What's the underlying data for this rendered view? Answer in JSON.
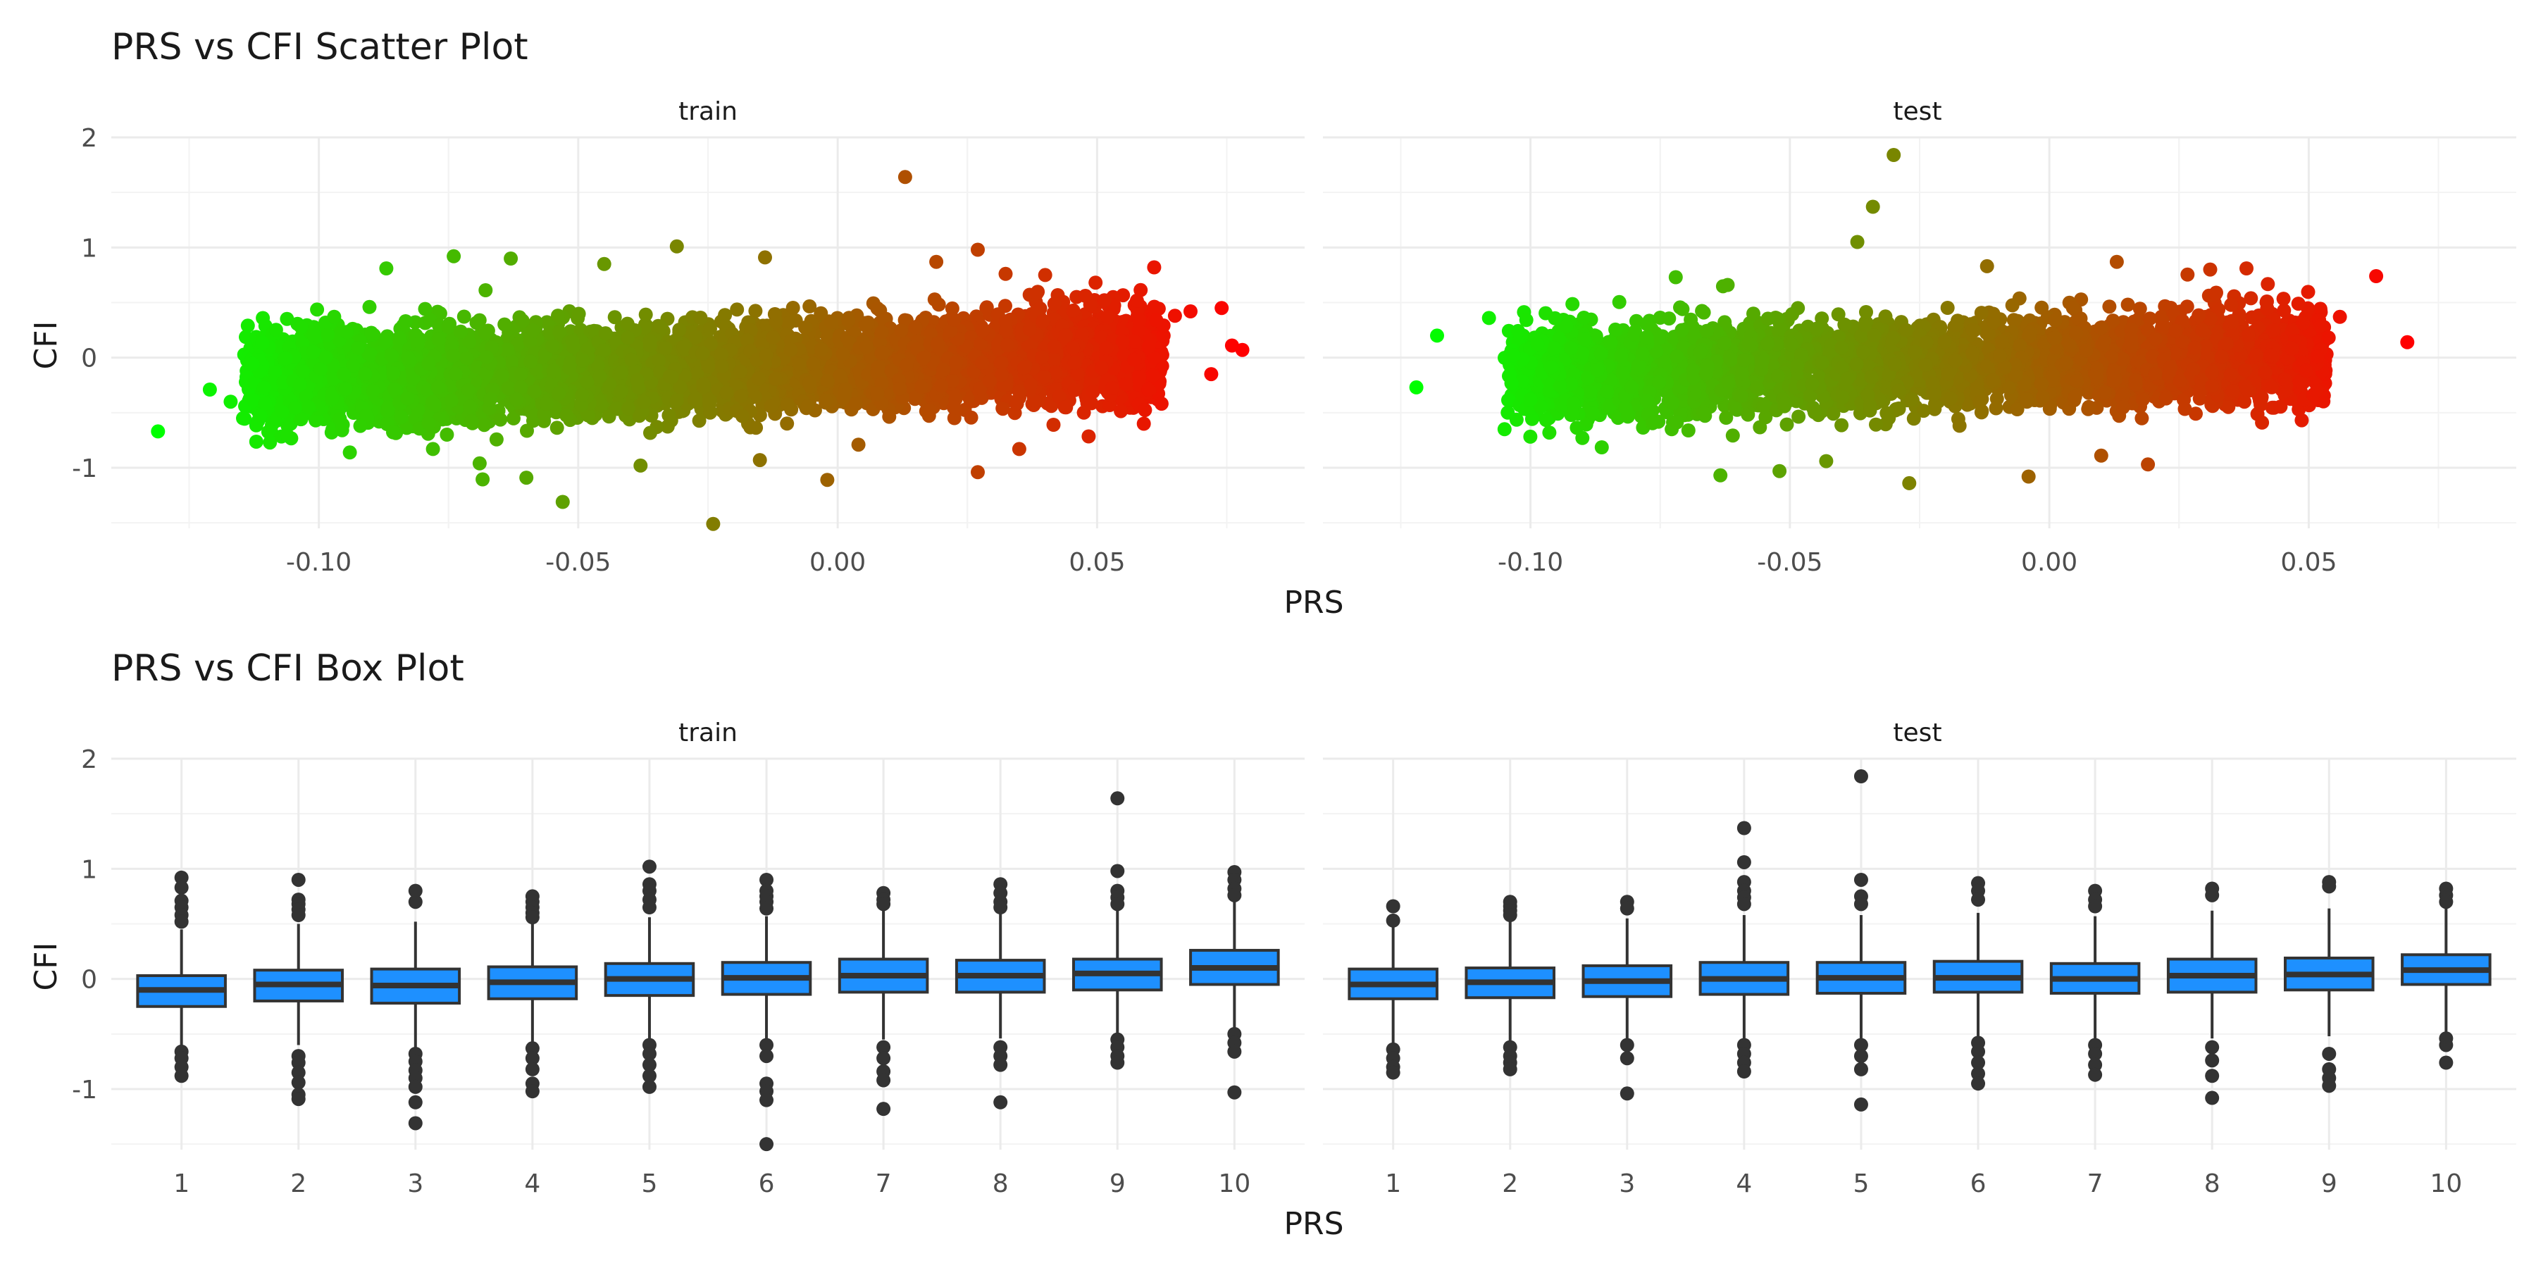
{
  "chart_data": [
    {
      "type": "scatter",
      "title": "PRS vs CFI Scatter Plot",
      "xlabel": "PRS",
      "ylabel": "CFI",
      "facets": [
        "train",
        "test"
      ],
      "xlim": [
        -0.14,
        0.09
      ],
      "ylim": [
        -1.55,
        2.0
      ],
      "x_ticks": [
        -0.1,
        -0.05,
        0.0,
        0.05
      ],
      "x_tick_labels": [
        "-0.10",
        "-0.05",
        "0.00",
        "0.05"
      ],
      "y_ticks": [
        -1,
        0,
        1,
        2
      ],
      "y_tick_labels": [
        "-1",
        "0",
        "1",
        "2"
      ],
      "grid": true,
      "color_low": "#00ff00",
      "color_high": "#ff0000",
      "panels": [
        {
          "name": "train",
          "x_range": [
            -0.13,
            0.078
          ],
          "points": [
            [
              -0.131,
              -0.67
            ],
            [
              0.013,
              1.64
            ],
            [
              0.078,
              0.07
            ],
            [
              0.076,
              0.11
            ],
            [
              0.074,
              0.45
            ],
            [
              -0.024,
              -1.51
            ],
            [
              -0.053,
              -1.31
            ],
            [
              0.027,
              -1.04
            ],
            [
              -0.002,
              -1.11
            ],
            [
              -0.074,
              0.92
            ],
            [
              -0.087,
              0.81
            ],
            [
              -0.063,
              0.9
            ],
            [
              -0.031,
              1.01
            ],
            [
              0.061,
              0.82
            ],
            [
              0.027,
              0.98
            ],
            [
              0.068,
              0.42
            ],
            [
              0.072,
              -0.15
            ],
            [
              0.059,
              -0.6
            ],
            [
              -0.117,
              -0.4
            ],
            [
              -0.121,
              -0.29
            ],
            [
              -0.101,
              0.21
            ],
            [
              -0.092,
              -0.62
            ],
            [
              -0.06,
              -1.09
            ],
            [
              -0.038,
              -0.98
            ],
            [
              -0.015,
              -0.93
            ],
            [
              0.004,
              -0.79
            ],
            [
              0.035,
              -0.83
            ],
            [
              -0.106,
              -0.71
            ],
            [
              -0.078,
              -0.83
            ],
            [
              0.04,
              0.75
            ],
            [
              0.019,
              0.87
            ],
            [
              -0.014,
              0.91
            ],
            [
              -0.045,
              0.85
            ],
            [
              0.065,
              0.38
            ],
            [
              -0.069,
              -0.96
            ]
          ]
        },
        {
          "name": "test",
          "x_range": [
            -0.12,
            0.069
          ],
          "points": [
            [
              -0.122,
              -0.27
            ],
            [
              -0.03,
              1.84
            ],
            [
              -0.034,
              1.37
            ],
            [
              -0.037,
              1.05
            ],
            [
              0.069,
              0.14
            ],
            [
              0.063,
              0.74
            ],
            [
              -0.027,
              -1.14
            ],
            [
              -0.004,
              -1.08
            ],
            [
              0.019,
              -0.97
            ],
            [
              -0.052,
              -1.03
            ],
            [
              0.041,
              -0.59
            ],
            [
              0.048,
              0.49
            ],
            [
              -0.105,
              -0.65
            ],
            [
              -0.118,
              0.2
            ],
            [
              -0.012,
              0.83
            ],
            [
              0.013,
              0.87
            ],
            [
              -0.072,
              0.73
            ],
            [
              0.031,
              0.8
            ],
            [
              -0.09,
              -0.73
            ],
            [
              0.056,
              0.37
            ],
            [
              -0.043,
              -0.94
            ],
            [
              0.01,
              -0.89
            ],
            [
              -0.108,
              0.36
            ],
            [
              -0.062,
              0.66
            ],
            [
              0.038,
              0.81
            ]
          ]
        }
      ]
    },
    {
      "type": "box",
      "title": "PRS vs CFI Box Plot",
      "xlabel": "PRS",
      "ylabel": "CFI",
      "facets": [
        "train",
        "test"
      ],
      "categories": [
        "1",
        "2",
        "3",
        "4",
        "5",
        "6",
        "7",
        "8",
        "9",
        "10"
      ],
      "ylim": [
        -1.55,
        2.0
      ],
      "y_ticks": [
        -1,
        0,
        1,
        2
      ],
      "y_tick_labels": [
        "-1",
        "0",
        "1",
        "2"
      ],
      "grid": true,
      "box_fill": "#1e90ff",
      "box_stroke": "#333333",
      "panels": [
        {
          "name": "train",
          "boxes": [
            {
              "q1": -0.25,
              "median": -0.1,
              "q3": 0.03,
              "lower": -0.6,
              "upper": 0.45,
              "outliers": [
                0.92,
                0.83,
                0.71,
                0.65,
                0.58,
                0.52,
                -0.66,
                -0.72,
                -0.8,
                -0.88
              ]
            },
            {
              "q1": -0.2,
              "median": -0.05,
              "q3": 0.08,
              "lower": -0.6,
              "upper": 0.5,
              "outliers": [
                0.9,
                0.72,
                0.68,
                0.63,
                0.58,
                -0.7,
                -0.76,
                -0.85,
                -0.94,
                -1.05,
                -1.09
              ]
            },
            {
              "q1": -0.22,
              "median": -0.06,
              "q3": 0.09,
              "lower": -0.63,
              "upper": 0.52,
              "outliers": [
                0.8,
                0.7,
                -0.68,
                -0.75,
                -0.83,
                -0.9,
                -0.98,
                -1.12,
                -1.31
              ]
            },
            {
              "q1": -0.18,
              "median": -0.03,
              "q3": 0.11,
              "lower": -0.58,
              "upper": 0.53,
              "outliers": [
                0.75,
                0.7,
                0.65,
                0.6,
                0.56,
                -0.63,
                -0.72,
                -0.82,
                -0.95,
                -1.02
              ]
            },
            {
              "q1": -0.15,
              "median": 0.0,
              "q3": 0.14,
              "lower": -0.55,
              "upper": 0.56,
              "outliers": [
                1.02,
                0.86,
                0.8,
                0.72,
                0.65,
                -0.6,
                -0.68,
                -0.78,
                -0.88,
                -0.98
              ]
            },
            {
              "q1": -0.14,
              "median": 0.01,
              "q3": 0.15,
              "lower": -0.55,
              "upper": 0.57,
              "outliers": [
                0.9,
                0.8,
                0.75,
                0.7,
                0.64,
                -0.6,
                -0.7,
                -0.95,
                -1.02,
                -1.1,
                -1.5
              ]
            },
            {
              "q1": -0.12,
              "median": 0.03,
              "q3": 0.18,
              "lower": -0.55,
              "upper": 0.62,
              "outliers": [
                0.78,
                0.72,
                0.68,
                -0.62,
                -0.72,
                -0.84,
                -0.92,
                -1.18
              ]
            },
            {
              "q1": -0.12,
              "median": 0.03,
              "q3": 0.17,
              "lower": -0.54,
              "upper": 0.6,
              "outliers": [
                0.86,
                0.78,
                0.7,
                0.65,
                -0.62,
                -0.7,
                -0.78,
                -1.12
              ]
            },
            {
              "q1": -0.1,
              "median": 0.05,
              "q3": 0.18,
              "lower": -0.5,
              "upper": 0.62,
              "outliers": [
                1.64,
                0.98,
                0.8,
                0.74,
                0.68,
                -0.55,
                -0.62,
                -0.7,
                -0.76
              ]
            },
            {
              "q1": -0.05,
              "median": 0.1,
              "q3": 0.26,
              "lower": -0.45,
              "upper": 0.72,
              "outliers": [
                0.97,
                0.9,
                0.82,
                0.76,
                -0.5,
                -0.58,
                -0.66,
                -1.03
              ]
            }
          ]
        },
        {
          "name": "test",
          "boxes": [
            {
              "q1": -0.18,
              "median": -0.05,
              "q3": 0.09,
              "lower": -0.6,
              "upper": 0.5,
              "outliers": [
                0.66,
                0.53,
                -0.64,
                -0.72,
                -0.8,
                -0.85
              ]
            },
            {
              "q1": -0.17,
              "median": -0.03,
              "q3": 0.1,
              "lower": -0.58,
              "upper": 0.52,
              "outliers": [
                0.7,
                0.66,
                0.62,
                0.58,
                -0.62,
                -0.7,
                -0.76,
                -0.82
              ]
            },
            {
              "q1": -0.16,
              "median": -0.02,
              "q3": 0.12,
              "lower": -0.57,
              "upper": 0.55,
              "outliers": [
                0.7,
                0.64,
                -0.6,
                -0.72,
                -1.04
              ]
            },
            {
              "q1": -0.14,
              "median": 0.0,
              "q3": 0.15,
              "lower": -0.56,
              "upper": 0.58,
              "outliers": [
                1.37,
                1.06,
                0.88,
                0.8,
                0.74,
                0.68,
                -0.6,
                -0.68,
                -0.76,
                -0.84
              ]
            },
            {
              "q1": -0.13,
              "median": 0.01,
              "q3": 0.15,
              "lower": -0.55,
              "upper": 0.58,
              "outliers": [
                1.84,
                0.9,
                0.75,
                0.68,
                -0.6,
                -0.7,
                -0.82,
                -1.14
              ]
            },
            {
              "q1": -0.12,
              "median": 0.01,
              "q3": 0.16,
              "lower": -0.54,
              "upper": 0.6,
              "outliers": [
                0.87,
                0.8,
                0.72,
                -0.58,
                -0.66,
                -0.76,
                -0.86,
                -0.95
              ]
            },
            {
              "q1": -0.13,
              "median": 0.0,
              "q3": 0.14,
              "lower": -0.55,
              "upper": 0.57,
              "outliers": [
                0.8,
                0.72,
                0.66,
                -0.6,
                -0.68,
                -0.78,
                -0.87
              ]
            },
            {
              "q1": -0.12,
              "median": 0.03,
              "q3": 0.18,
              "lower": -0.54,
              "upper": 0.62,
              "outliers": [
                0.82,
                0.76,
                -0.62,
                -0.74,
                -0.88,
                -1.08
              ]
            },
            {
              "q1": -0.1,
              "median": 0.04,
              "q3": 0.19,
              "lower": -0.52,
              "upper": 0.64,
              "outliers": [
                0.88,
                0.84,
                -0.68,
                -0.82,
                -0.9,
                -0.97
              ]
            },
            {
              "q1": -0.05,
              "median": 0.08,
              "q3": 0.22,
              "lower": -0.48,
              "upper": 0.66,
              "outliers": [
                0.82,
                0.76,
                0.7,
                -0.54,
                -0.6,
                -0.76
              ]
            }
          ]
        }
      ]
    }
  ]
}
